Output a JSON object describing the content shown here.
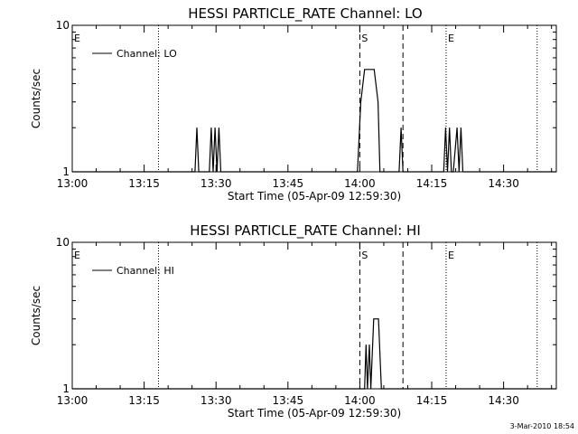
{
  "footer": {
    "timestamp": "3-Mar-2010 18:54"
  },
  "chart_data": [
    {
      "type": "line",
      "title": "HESSI PARTICLE_RATE Channel: LO",
      "xlabel": "Start Time (05-Apr-09 12:59:30)",
      "ylabel": "Counts/sec",
      "y_scale": "log",
      "ylim": [
        1,
        10
      ],
      "xlim_minutes_after_1300": [
        0,
        101
      ],
      "x_ticks": [
        "13:00",
        "13:15",
        "13:30",
        "13:45",
        "14:00",
        "14:15",
        "14:30"
      ],
      "y_ticks": [
        "1",
        "10"
      ],
      "legend": {
        "position": "top-left",
        "entries": [
          "Channel: LO"
        ]
      },
      "series": [
        {
          "name": "Channel: LO",
          "x": [
            0,
            25.6,
            26.0,
            26.4,
            28.6,
            29.0,
            29.4,
            29.8,
            30.2,
            30.6,
            31.0,
            59.5,
            60.2,
            61.0,
            63.0,
            63.8,
            64.2,
            68.2,
            68.6,
            69.0,
            77.5,
            77.9,
            78.3,
            78.7,
            79.1,
            79.5,
            80.3,
            80.7,
            81.1,
            81.5,
            81.9,
            101
          ],
          "y": [
            1,
            1,
            2,
            1,
            1,
            2,
            1,
            2,
            1,
            2,
            1,
            1,
            3,
            5,
            5,
            3,
            1,
            1,
            2,
            1,
            1,
            2,
            1,
            2,
            1,
            1,
            2,
            1,
            2,
            1,
            1,
            1
          ]
        }
      ],
      "annotations": [
        {
          "label": "E",
          "time": "13:00",
          "style": "dotted"
        },
        {
          "label": "",
          "time": "13:18",
          "style": "dotted"
        },
        {
          "label": "S",
          "time": "14:00",
          "style": "dashed"
        },
        {
          "label": "",
          "time": "14:09",
          "style": "dashed"
        },
        {
          "label": "E",
          "time": "14:18",
          "style": "dotted"
        },
        {
          "label": "",
          "time": "14:37",
          "style": "dotted"
        }
      ]
    },
    {
      "type": "line",
      "title": "HESSI PARTICLE_RATE Channel: HI",
      "xlabel": "Start Time (05-Apr-09 12:59:30)",
      "ylabel": "Counts/sec",
      "y_scale": "log",
      "ylim": [
        1,
        10
      ],
      "xlim_minutes_after_1300": [
        0,
        101
      ],
      "x_ticks": [
        "13:00",
        "13:15",
        "13:30",
        "13:45",
        "14:00",
        "14:15",
        "14:30"
      ],
      "y_ticks": [
        "1",
        "10"
      ],
      "legend": {
        "position": "top-left",
        "entries": [
          "Channel: HI"
        ]
      },
      "series": [
        {
          "name": "Channel: HI",
          "x": [
            0,
            61.0,
            61.3,
            61.6,
            62.0,
            62.3,
            62.9,
            63.9,
            64.5,
            101
          ],
          "y": [
            1,
            1,
            2,
            1,
            2,
            1,
            3,
            3,
            1,
            1
          ]
        }
      ],
      "annotations": [
        {
          "label": "E",
          "time": "13:00",
          "style": "dotted"
        },
        {
          "label": "",
          "time": "13:18",
          "style": "dotted"
        },
        {
          "label": "S",
          "time": "14:00",
          "style": "dashed"
        },
        {
          "label": "",
          "time": "14:09",
          "style": "dashed"
        },
        {
          "label": "E",
          "time": "14:18",
          "style": "dotted"
        },
        {
          "label": "",
          "time": "14:37",
          "style": "dotted"
        }
      ]
    }
  ]
}
